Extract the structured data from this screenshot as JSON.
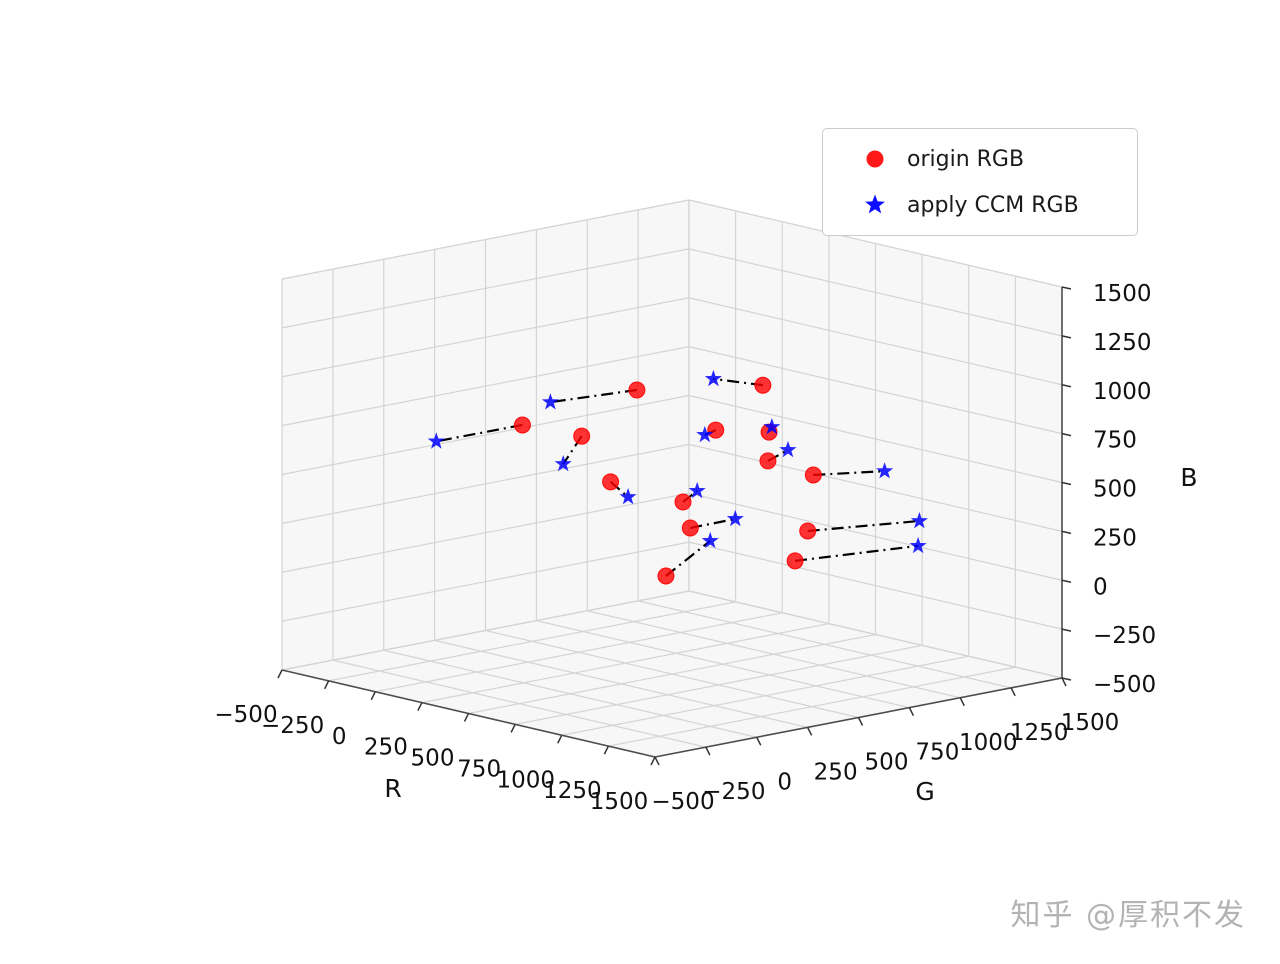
{
  "figure": {
    "legend": {
      "items": [
        {
          "label": "origin RGB",
          "marker": "circle",
          "color": "#ff0000"
        },
        {
          "label": "apply CCM RGB",
          "marker": "star",
          "color": "#0000ff"
        }
      ]
    },
    "watermark": "知乎 @厚积不发"
  },
  "chart_data": {
    "type": "scatter",
    "projection": "3d",
    "title": "",
    "grid": true,
    "legend_position": "upper right",
    "connector_style": {
      "linestyle": "dashdot",
      "color": "#000000"
    },
    "axes": {
      "x": {
        "label": "R",
        "range": [
          -500,
          1500
        ],
        "ticks": [
          -500,
          -250,
          0,
          250,
          500,
          750,
          1000,
          1250,
          1500
        ]
      },
      "y": {
        "label": "G",
        "range": [
          -500,
          1500
        ],
        "ticks": [
          -500,
          -250,
          0,
          250,
          500,
          750,
          1000,
          1250,
          1500
        ]
      },
      "z": {
        "label": "B",
        "range": [
          -500,
          1500
        ],
        "ticks": [
          -500,
          -250,
          0,
          250,
          500,
          750,
          1000,
          1250,
          1500
        ]
      }
    },
    "series": [
      {
        "name": "origin RGB",
        "marker": "circle",
        "color": "#ff0000",
        "points": [
          [
            530,
            300,
            1000
          ],
          [
            900,
            580,
            1050
          ],
          [
            200,
            40,
            800
          ],
          [
            485,
            70,
            800
          ],
          [
            760,
            -40,
            650
          ],
          [
            980,
            275,
            900
          ],
          [
            1135,
            395,
            900
          ],
          [
            1200,
            330,
            780
          ],
          [
            1045,
            695,
            600
          ],
          [
            870,
            215,
            520
          ],
          [
            920,
            205,
            400
          ],
          [
            1195,
            530,
            380
          ],
          [
            1220,
            445,
            250
          ],
          [
            1095,
            -75,
            250
          ]
        ]
      },
      {
        "name": "apply CCM RGB",
        "marker": "star",
        "color": "#0000ff",
        "points": [
          [
            350,
            40,
            950
          ],
          [
            700,
            520,
            1050
          ],
          [
            0,
            -200,
            720
          ],
          [
            495,
            -30,
            680
          ],
          [
            870,
            -55,
            600
          ],
          [
            965,
            235,
            880
          ],
          [
            1090,
            450,
            905
          ],
          [
            1160,
            465,
            800
          ],
          [
            1220,
            885,
            620
          ],
          [
            815,
            335,
            540
          ],
          [
            965,
            385,
            420
          ],
          [
            1390,
            900,
            400
          ],
          [
            1405,
            880,
            280
          ],
          [
            885,
            335,
            300
          ]
        ]
      }
    ]
  }
}
